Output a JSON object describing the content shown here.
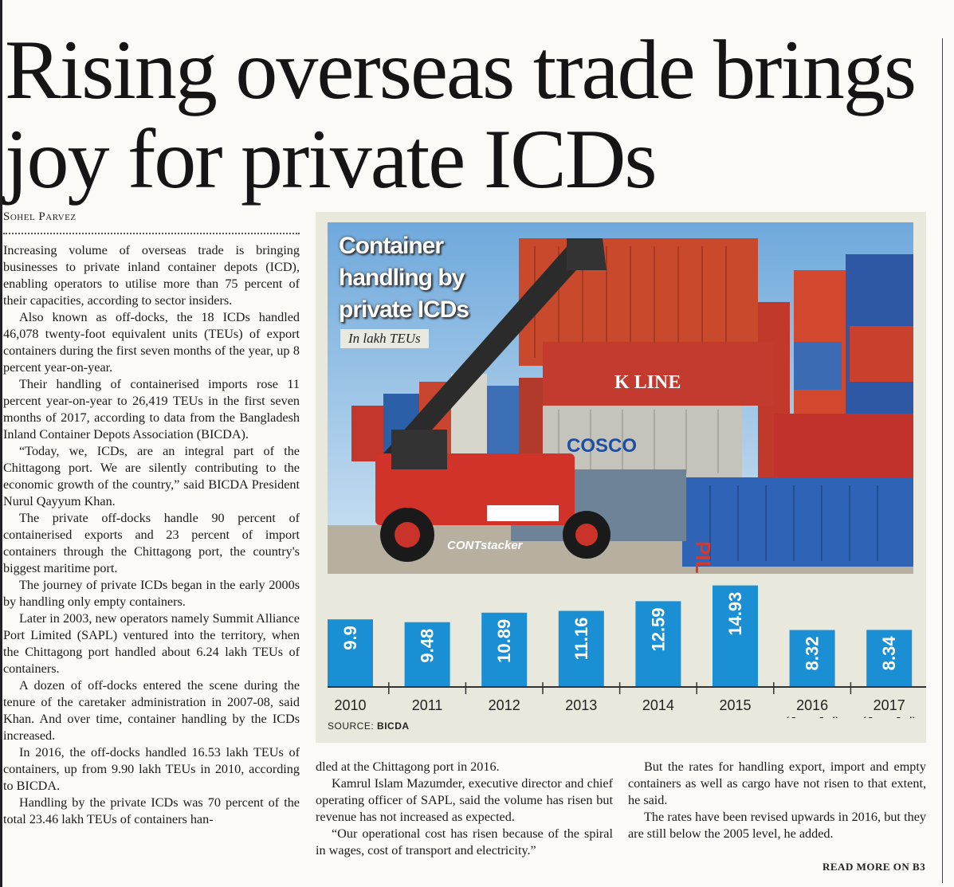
{
  "headline": "Rising overseas trade brings joy for private ICDs",
  "byline": "Sohel Parvez",
  "graphic": {
    "title_lines": [
      "Container",
      "handling by",
      "private ICDs"
    ],
    "unit": "In lakh TEUs",
    "source_label": "SOURCE:",
    "source_name": "BICDA",
    "photo_text": {
      "k_line": "K LINE",
      "cosco": "COSCO",
      "pil": "PIL",
      "crane": "CONTstacker"
    },
    "colors": {
      "bar": "#1a8fd4",
      "bar_label": "#ffffff",
      "panel": "#e9e8dc"
    }
  },
  "chart_data": {
    "type": "bar",
    "title": "Container handling by private ICDs",
    "ylabel": "In lakh TEUs",
    "categories": [
      {
        "line1": "2010",
        "line2": ""
      },
      {
        "line1": "2011",
        "line2": ""
      },
      {
        "line1": "2012",
        "line2": ""
      },
      {
        "line1": "2013",
        "line2": ""
      },
      {
        "line1": "2014",
        "line2": ""
      },
      {
        "line1": "2015",
        "line2": ""
      },
      {
        "line1": "2016",
        "line2": "(Jan-Jul)"
      },
      {
        "line1": "2017",
        "line2": "(Jan-Jul)"
      }
    ],
    "values": [
      9.9,
      9.48,
      10.89,
      11.16,
      12.59,
      14.93,
      8.32,
      8.34
    ],
    "value_labels": [
      "9.9",
      "9.48",
      "10.89",
      "11.16",
      "12.59",
      "14.93",
      "8.32",
      "8.34"
    ],
    "ylim": [
      0,
      15
    ],
    "grid": false,
    "legend": "none"
  },
  "article": {
    "col1": [
      "Increasing volume of overseas trade is bringing businesses to private inland container depots (ICD), enabling operators to utilise more than 75 percent of their capacities, according to sector insiders.",
      "Also known as off-docks, the 18 ICDs handled 46,078 twenty-foot equivalent units (TEUs) of export containers during the first seven months of the year, up 8 percent year-on-year.",
      "Their handling of containerised imports rose 11 percent year-on-year to 26,419 TEUs in the first seven months of 2017, according to data from the Bangladesh Inland Container Depots Association (BICDA).",
      "“Today, we, ICDs, are an integral part of the Chittagong port. We are silently contributing to the economic growth of the country,” said BICDA President Nurul Qayyum Khan.",
      "The private off-docks handle 90 percent of containerised exports and 23 percent of import containers through the Chittagong port, the country's biggest maritime port.",
      "The journey of private ICDs began in the early 2000s by handling only empty containers.",
      "Later in 2003, new operators namely Summit Alliance Port Limited (SAPL) ventured into the territory, when the Chittagong port handled about 6.24 lakh TEUs of containers.",
      "A dozen of off-docks entered the scene during the tenure of the caretaker administration in 2007-08, said Khan. And over time, container handling by the ICDs increased.",
      "In 2016, the off-docks handled 16.53 lakh TEUs of containers, up from 9.90 lakh TEUs in 2010, according to BICDA.",
      "Handling by the private ICDs was 70 percent of the total 23.46 lakh TEUs of containers han-"
    ],
    "col2": [
      "dled at the Chittagong port in 2016.",
      "Kamrul Islam Mazumder, executive director and chief operating officer of SAPL, said the volume has risen but revenue has not increased as expected.",
      "“Our operational cost has risen because of the spiral in wages, cost of transport and electricity.”"
    ],
    "col3": [
      "But the rates for handling export, import and empty containers as well as cargo have not risen to that extent, he said.",
      "The rates have been revised upwards in 2016, but they are still below the 2005 level, he added."
    ],
    "read_more": "READ MORE ON B3"
  }
}
